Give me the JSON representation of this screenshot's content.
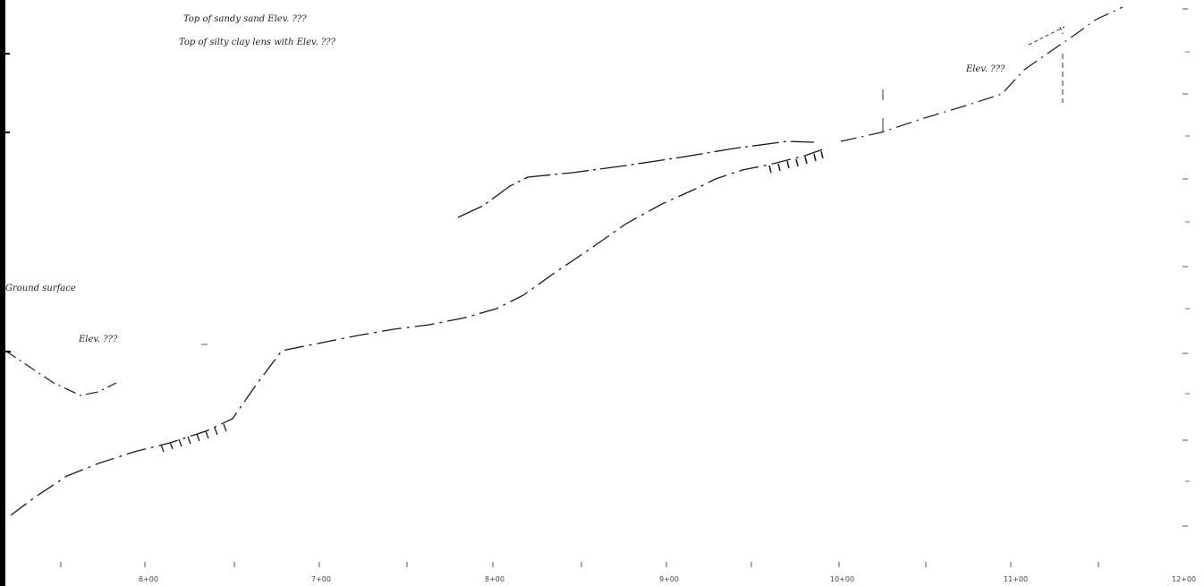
{
  "document": {
    "kind": "scanned cross-section profile drawing",
    "notes": {
      "top_note_1": "Top of sandy sand Elev. ???",
      "top_note_2": "Top of silty clay lens with Elev. ???",
      "right_note": "Elev. ???",
      "ground_label": "Ground surface",
      "elev_label": "Elev. ???"
    },
    "bottom_axis_labels": [
      "6+00",
      "7+00",
      "8+00",
      "9+00",
      "10+00",
      "11+00",
      "12+00"
    ],
    "right_axis_labels": [
      "",
      "",
      "",
      "",
      "",
      "",
      "",
      "",
      "",
      ""
    ],
    "colors": {
      "ink": "#1a1a1a",
      "paper": "#ffffff",
      "frame": "#000000"
    }
  }
}
